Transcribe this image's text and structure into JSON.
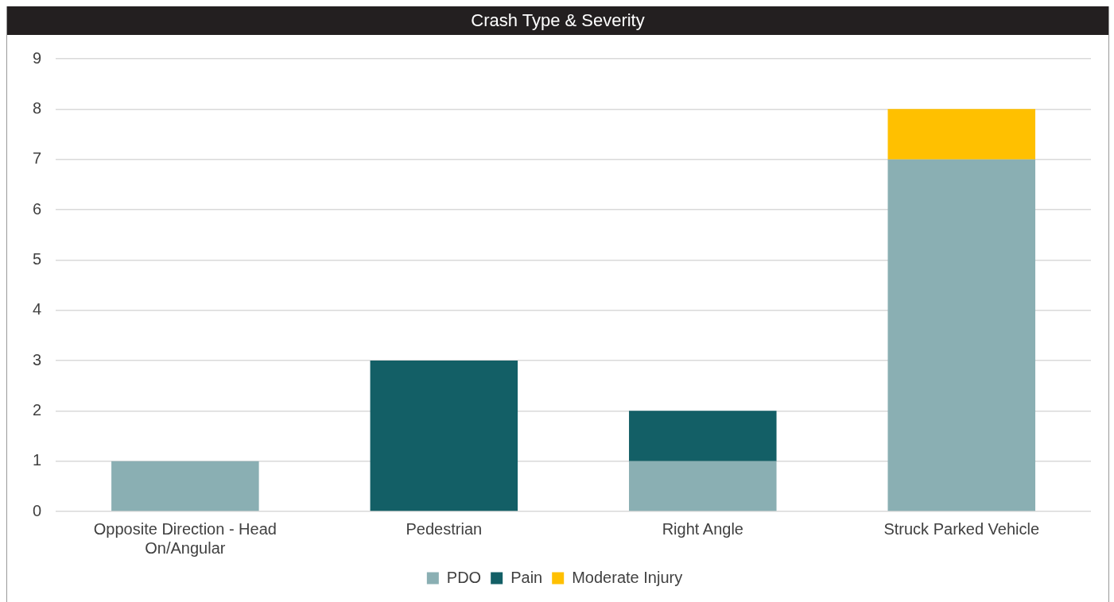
{
  "chart_data": {
    "type": "bar",
    "title": "Crash Type & Severity",
    "categories": [
      "Opposite Direction - Head On/Angular",
      "Pedestrian",
      "Right Angle",
      "Struck Parked Vehicle"
    ],
    "series": [
      {
        "name": "PDO",
        "color": "#8aafb3",
        "values": [
          1,
          0,
          1,
          7
        ]
      },
      {
        "name": "Pain",
        "color": "#135f66",
        "values": [
          0,
          3,
          1,
          0
        ]
      },
      {
        "name": "Moderate Injury",
        "color": "#ffc000",
        "values": [
          0,
          0,
          0,
          1
        ]
      }
    ],
    "stacked": true,
    "ylim": [
      0,
      9
    ],
    "yticks": [
      0,
      1,
      2,
      3,
      4,
      5,
      6,
      7,
      8,
      9
    ],
    "grid": "y",
    "legend": "bottom"
  }
}
